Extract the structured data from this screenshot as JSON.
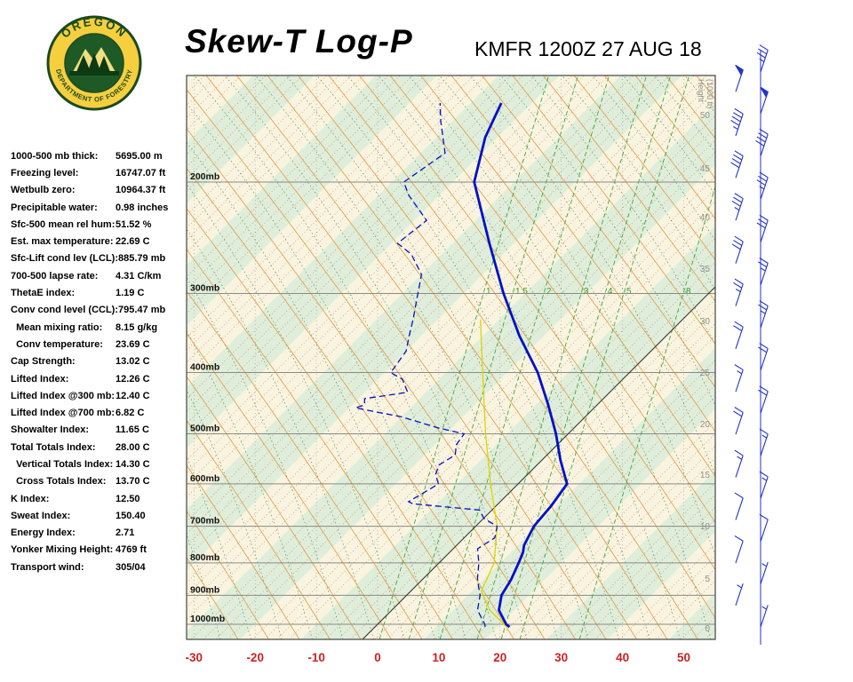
{
  "header": {
    "title": "Skew-T Log-P",
    "station_line": "KMFR 1200Z 27 AUG 18",
    "logo": {
      "top_text": "OREGON",
      "bottom_text": "DEPARTMENT OF FORESTRY"
    }
  },
  "indices": [
    {
      "label": "1000-500 mb thick:",
      "value": "5695.00 m"
    },
    {
      "label": "Freezing level:",
      "value": "16747.07 ft"
    },
    {
      "label": "Wetbulb zero:",
      "value": "10964.37 ft"
    },
    {
      "label": "Precipitable water:",
      "value": "0.98 inches"
    },
    {
      "label": "Sfc-500 mean rel hum:",
      "value": "51.52 %"
    },
    {
      "label": "Est. max temperature:",
      "value": "22.69 C"
    },
    {
      "label": "Sfc-Lift cond lev (LCL):",
      "value": "885.79 mb"
    },
    {
      "label": "700-500 lapse rate:",
      "value": "4.31 C/km"
    },
    {
      "label": "ThetaE index:",
      "value": "1.19 C"
    },
    {
      "label": "Conv cond level (CCL):",
      "value": "795.47 mb"
    },
    {
      "label": "  Mean mixing ratio:",
      "value": "8.15 g/kg"
    },
    {
      "label": "  Conv temperature:",
      "value": "23.69 C"
    },
    {
      "label": "Cap Strength:",
      "value": "13.02 C"
    },
    {
      "label": "Lifted Index:",
      "value": "12.26 C"
    },
    {
      "label": "Lifted Index @300 mb:",
      "value": "12.40 C"
    },
    {
      "label": "Lifted Index @700 mb:",
      "value": "6.82 C"
    },
    {
      "label": "Showalter Index:",
      "value": "11.65 C"
    },
    {
      "label": "Total Totals Index:",
      "value": "28.00 C"
    },
    {
      "label": "  Vertical Totals Index:",
      "value": "14.30 C"
    },
    {
      "label": "  Cross Totals Index:",
      "value": "13.70 C"
    },
    {
      "label": "K Index:",
      "value": "12.50"
    },
    {
      "label": "Sweat Index:",
      "value": "150.40"
    },
    {
      "label": "Energy Index:",
      "value": "2.71"
    },
    {
      "label": "Yonker Mixing Height:",
      "value": "4769 ft"
    },
    {
      "label": "Transport wind:",
      "value": "305/04"
    }
  ],
  "chart_data": {
    "type": "line",
    "subtype": "skew-t-log-p",
    "station": "KMFR",
    "valid": "1200Z 27 AUG 18",
    "x_axis": {
      "unit": "C",
      "ticks": [
        -30,
        -20,
        -10,
        0,
        10,
        20,
        30,
        40,
        50
      ]
    },
    "pressure_axis": {
      "unit": "mb",
      "levels": [
        200,
        300,
        400,
        500,
        600,
        700,
        800,
        900,
        1000
      ],
      "labels": [
        "200mb",
        "300mb",
        "400mb",
        "500mb",
        "600mb",
        "700mb",
        "800mb",
        "900mb",
        "1000mb"
      ]
    },
    "height_axis": {
      "label_lines": [
        "Height",
        "(1000 ft)"
      ],
      "ticks": [
        "50",
        "45",
        "40",
        "35",
        "30",
        "25",
        "20",
        "15",
        "10",
        "5",
        "0"
      ]
    },
    "mixing_ratio_labels": [
      "1",
      "1.5",
      "2",
      "3",
      "4",
      "5",
      "8"
    ],
    "series": [
      {
        "name": "temperature",
        "style": "solid",
        "color": "#0010c8",
        "p": [
          1010,
          1000,
          950,
          900,
          850,
          800,
          770,
          750,
          700,
          650,
          600,
          550,
          500,
          450,
          400,
          350,
          300,
          250,
          200,
          170,
          150
        ],
        "t": [
          22,
          21,
          17.5,
          15.5,
          14.5,
          13,
          12,
          11,
          9.5,
          9,
          8,
          3,
          -2,
          -8,
          -15,
          -24,
          -33.5,
          -44,
          -56.5,
          -62,
          -65
        ]
      },
      {
        "name": "dewpoint",
        "style": "dashed",
        "color": "#0010c8",
        "p": [
          1010,
          1000,
          950,
          900,
          850,
          800,
          760,
          730,
          700,
          680,
          660,
          645,
          640,
          620,
          600,
          580,
          560,
          540,
          520,
          500,
          490,
          470,
          455,
          450,
          440,
          430,
          410,
          400,
          370,
          350,
          330,
          300,
          280,
          260,
          250,
          230,
          210,
          200,
          180,
          160,
          150
        ],
        "t": [
          18,
          17.5,
          14,
          12,
          9,
          6.5,
          4,
          5,
          3.5,
          0,
          -2,
          -14,
          -15,
          -14,
          -13,
          -15,
          -16,
          -15,
          -16.5,
          -17,
          -22,
          -30,
          -39,
          -38,
          -39,
          -33,
          -36,
          -39,
          -40,
          -42,
          -44,
          -47.5,
          -50,
          -55,
          -59,
          -58,
          -65,
          -68,
          -66,
          -72,
          -75
        ]
      },
      {
        "name": "parcel",
        "style": "solid",
        "color": "#ddd400",
        "p": [
          1010,
          950,
          886,
          850,
          800,
          700,
          600,
          500,
          400,
          330
        ],
        "t": [
          21.5,
          16,
          11.5,
          10.5,
          9,
          3.5,
          -4.5,
          -13.5,
          -24,
          -33
        ]
      }
    ],
    "wind_barbs": {
      "color": "#2233cc",
      "p": [
        1010,
        934,
        864,
        800,
        740,
        684,
        633,
        586,
        542,
        501,
        464,
        429,
        397,
        367,
        340,
        314,
        291,
        269,
        249,
        230,
        213,
        197,
        182,
        169,
        156,
        144,
        134
      ],
      "kt": [
        5,
        5,
        5,
        10,
        10,
        10,
        15,
        15,
        15,
        20,
        20,
        15,
        20,
        20,
        25,
        25,
        25,
        30,
        30,
        35,
        35,
        40,
        40,
        45,
        50,
        50,
        35
      ]
    },
    "colors": {
      "background": "#f9f4df",
      "band": "#dfeeda",
      "isotherm_minor": "#c0504d",
      "dry_adiabat": "#e09a40",
      "moist_adiabat": "#4a7a4a",
      "mixing_ratio": "#2f9e2f",
      "pressure_line": "#8a8a8a",
      "axis_label_red": "#cc2222",
      "height_label": "#8f8f8f",
      "zero_isotherm": "#333333"
    }
  }
}
